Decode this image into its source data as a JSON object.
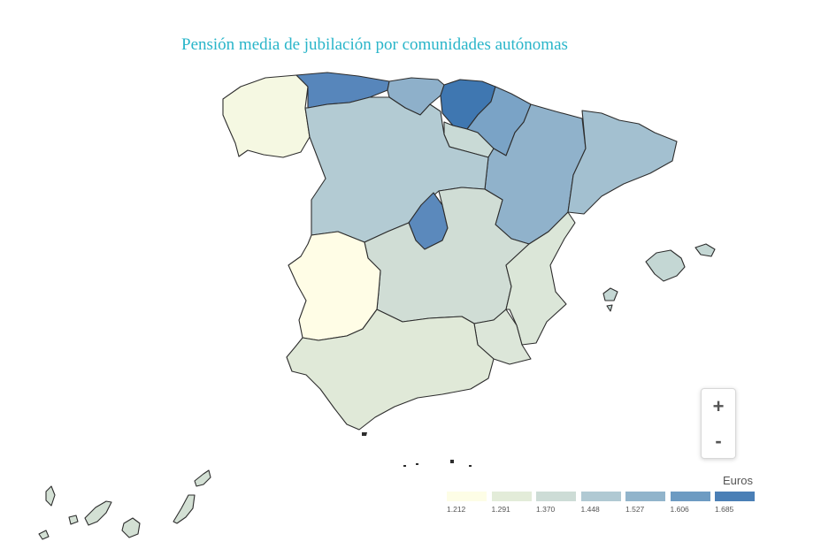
{
  "title": "Pensión media de jubilación por comunidades autónomas",
  "zoom": {
    "in_label": "+",
    "out_label": "-"
  },
  "legend": {
    "title": "Euros",
    "items": [
      {
        "label": "1.212",
        "color": "#fdfde6"
      },
      {
        "label": "1.291",
        "color": "#e3ecd9"
      },
      {
        "label": "1.370",
        "color": "#cddcd6"
      },
      {
        "label": "1.448",
        "color": "#b0c9d3"
      },
      {
        "label": "1.527",
        "color": "#91b4cb"
      },
      {
        "label": "1.606",
        "color": "#6d9bc2"
      },
      {
        "label": "1.685",
        "color": "#4a7fb6"
      }
    ]
  },
  "regions": [
    {
      "id": "galicia",
      "color": "#f5f8e2"
    },
    {
      "id": "asturias",
      "color": "#5786bb"
    },
    {
      "id": "cantabria",
      "color": "#8eb0ca"
    },
    {
      "id": "pais-vasco",
      "color": "#3f77b1"
    },
    {
      "id": "navarra",
      "color": "#7aa3c6"
    },
    {
      "id": "la-rioja",
      "color": "#c9dad6"
    },
    {
      "id": "aragon",
      "color": "#90b2cb"
    },
    {
      "id": "cataluna",
      "color": "#a3c0d0"
    },
    {
      "id": "castilla-y-leon",
      "color": "#b3cbd3"
    },
    {
      "id": "madrid",
      "color": "#5b89bc"
    },
    {
      "id": "castilla-la-mancha",
      "color": "#d0ddd5"
    },
    {
      "id": "valencia",
      "color": "#dbe6d8"
    },
    {
      "id": "murcia",
      "color": "#dce6d9"
    },
    {
      "id": "extremadura",
      "color": "#fffde6"
    },
    {
      "id": "andalucia",
      "color": "#e0e9d8"
    },
    {
      "id": "baleares",
      "color": "#c4d7d4"
    },
    {
      "id": "canarias",
      "color": "#d3e0d4"
    }
  ]
}
